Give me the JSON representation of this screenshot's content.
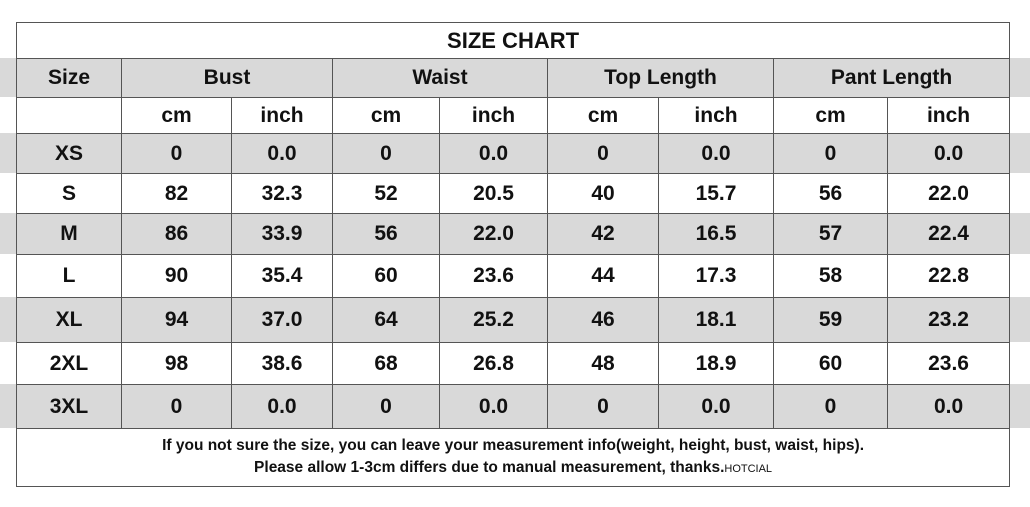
{
  "title": "SIZE CHART",
  "header": {
    "size": "Size",
    "groups": [
      "Bust",
      "Waist",
      "Top Length",
      "Pant Length"
    ]
  },
  "units": [
    "cm",
    "inch",
    "cm",
    "inch",
    "cm",
    "inch",
    "cm",
    "inch"
  ],
  "rows": [
    [
      "XS",
      "0",
      "0.0",
      "0",
      "0.0",
      "0",
      "0.0",
      "0",
      "0.0"
    ],
    [
      "S",
      "82",
      "32.3",
      "52",
      "20.5",
      "40",
      "15.7",
      "56",
      "22.0"
    ],
    [
      "M",
      "86",
      "33.9",
      "56",
      "22.0",
      "42",
      "16.5",
      "57",
      "22.4"
    ],
    [
      "L",
      "90",
      "35.4",
      "60",
      "23.6",
      "44",
      "17.3",
      "58",
      "22.8"
    ],
    [
      "XL",
      "94",
      "37.0",
      "64",
      "25.2",
      "46",
      "18.1",
      "59",
      "23.2"
    ],
    [
      "2XL",
      "98",
      "38.6",
      "68",
      "26.8",
      "48",
      "18.9",
      "60",
      "23.6"
    ],
    [
      "3XL",
      "0",
      "0.0",
      "0",
      "0.0",
      "0",
      "0.0",
      "0",
      "0.0"
    ]
  ],
  "footer": {
    "line1": "If you not sure the size, you can leave your measurement info(weight, height, bust, waist, hips).",
    "line2": "Please allow 1-3cm differs due to manual measurement, thanks.",
    "brand": "HOTCIAL"
  }
}
